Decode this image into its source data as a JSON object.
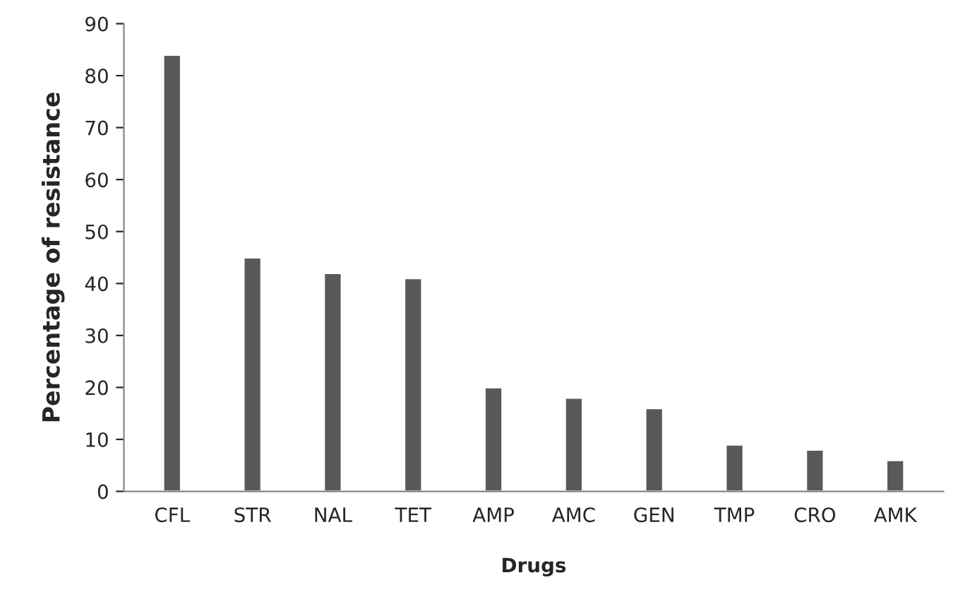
{
  "chart_data": {
    "type": "bar",
    "categories": [
      "CFL",
      "STR",
      "NAL",
      "TET",
      "AMP",
      "AMC",
      "GEN",
      "TMP",
      "CRO",
      "AMK"
    ],
    "values": [
      84,
      45,
      42,
      41,
      20,
      18,
      16,
      9,
      8,
      6
    ],
    "color": "#595959",
    "xlabel": "Drugs",
    "ylabel": "Percentage of resistance",
    "ylim": [
      0,
      90
    ],
    "yticks": [
      0,
      10,
      20,
      30,
      40,
      50,
      60,
      70,
      80,
      90
    ],
    "grid": false,
    "legend": false
  }
}
